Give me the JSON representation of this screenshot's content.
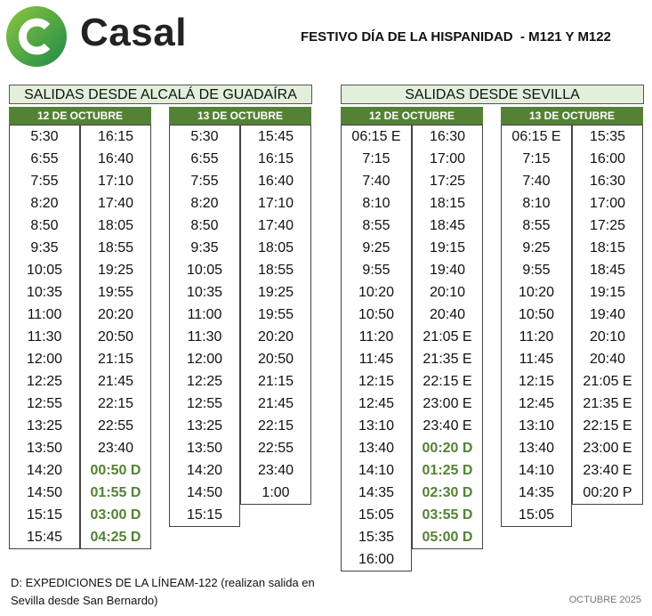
{
  "header": {
    "logo": "Casal",
    "title": "FESTIVO DÍA DE LA HISPANIDAD  - M121 Y M122"
  },
  "sections": [
    {
      "title": "SALIDAS DESDE ALCALÁ DE GUADAÍRA",
      "days": [
        {
          "label": "12 DE OCTUBRE",
          "columns": [
            [
              "5:30",
              "6:55",
              "7:55",
              "8:20",
              "8:50",
              "9:35",
              "10:05",
              "10:35",
              "11:00",
              "11:30",
              "12:00",
              "12:25",
              "12:55",
              "13:25",
              "13:50",
              "14:20",
              "14:50",
              "15:15",
              "15:45"
            ],
            [
              "16:15",
              "16:40",
              "17:10",
              "17:40",
              "18:05",
              "18:55",
              "19:25",
              "19:55",
              "20:20",
              "20:50",
              "21:15",
              "21:45",
              "22:15",
              "22:55",
              "23:40",
              "00:50 D",
              "01:55 D",
              "03:00 D",
              "04:25 D"
            ]
          ]
        },
        {
          "label": "13 DE OCTUBRE",
          "columns": [
            [
              "5:30",
              "6:55",
              "7:55",
              "8:20",
              "8:50",
              "9:35",
              "10:05",
              "10:35",
              "11:00",
              "11:30",
              "12:00",
              "12:25",
              "12:55",
              "13:25",
              "13:50",
              "14:20",
              "14:50",
              "15:15"
            ],
            [
              "15:45",
              "16:15",
              "16:40",
              "17:10",
              "17:40",
              "18:05",
              "18:55",
              "19:25",
              "19:55",
              "20:20",
              "20:50",
              "21:15",
              "21:45",
              "22:15",
              "22:55",
              "23:40",
              "1:00"
            ]
          ]
        }
      ]
    },
    {
      "title": "SALIDAS DESDE SEVILLA",
      "days": [
        {
          "label": "12 DE OCTUBRE",
          "columns": [
            [
              "06:15 E",
              "7:15",
              "7:40",
              "8:10",
              "8:55",
              "9:25",
              "9:55",
              "10:20",
              "10:50",
              "11:20",
              "11:45",
              "12:15",
              "12:45",
              "13:10",
              "13:40",
              "14:10",
              "14:35",
              "15:05",
              "15:35",
              "16:00"
            ],
            [
              "16:30",
              "17:00",
              "17:25",
              "18:15",
              "18:45",
              "19:15",
              "19:40",
              "20:10",
              "20:40",
              "21:05 E",
              "21:35 E",
              "22:15 E",
              "23:00 E",
              "23:40 E",
              "00:20 D",
              "01:25 D",
              "02:30 D",
              "03:55 D",
              "05:00 D"
            ]
          ]
        },
        {
          "label": "13 DE OCTUBRE",
          "columns": [
            [
              "06:15 E",
              "7:15",
              "7:40",
              "8:10",
              "8:55",
              "9:25",
              "9:55",
              "10:20",
              "10:50",
              "11:20",
              "11:45",
              "12:15",
              "12:45",
              "13:10",
              "13:40",
              "14:10",
              "14:35",
              "15:05"
            ],
            [
              "15:35",
              "16:00",
              "16:30",
              "17:00",
              "17:25",
              "18:15",
              "18:45",
              "19:15",
              "19:40",
              "20:10",
              "20:40",
              "21:05 E",
              "21:35 E",
              "22:15 E",
              "23:00 E",
              "23:40 E",
              "00:20 P"
            ]
          ]
        }
      ]
    }
  ],
  "footer": {
    "note": "D: EXPEDICIONES DE LA LÍNEAM-122 (realizan salida en Sevilla desde San Bernardo)",
    "date": "OCTUBRE 2025"
  }
}
